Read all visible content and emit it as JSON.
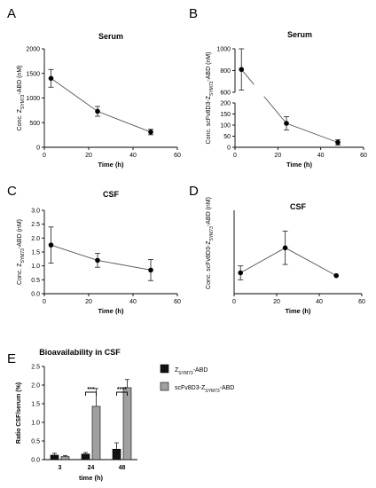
{
  "colors": {
    "black_bar": "#111111",
    "grey_bar": "#a0a0a0",
    "line": "#555555"
  },
  "chart_data": [
    {
      "id": "A",
      "type": "line",
      "panel_label": "A",
      "title": "Serum",
      "ylabel": "Conc. Zₛᵧₘ₇₃-ABD (nM)",
      "ylabel_parts": {
        "pre": "Conc. Z",
        "sub": "SYM73",
        "post": "-ABD (nM)"
      },
      "xlabel": "Time (h)",
      "xlim": [
        0,
        60
      ],
      "ylim": [
        0,
        2000
      ],
      "xticks": [
        0,
        20,
        40,
        60
      ],
      "yticks": [
        0,
        500,
        1000,
        1500,
        2000
      ],
      "series": [
        {
          "x": [
            3,
            24,
            48
          ],
          "y": [
            1400,
            730,
            310
          ],
          "err": [
            180,
            100,
            55
          ]
        }
      ]
    },
    {
      "id": "B",
      "type": "line",
      "panel_label": "B",
      "title": "Serum",
      "ylabel": "Conc. scFv8D3-Z SYM73-ABD (nM)",
      "ylabel_parts": {
        "pre": "Conc. scFv8D3-Z",
        "sub": "SYM73",
        "post": "-ABD (nM)"
      },
      "xlabel": "Time (h)",
      "xlim": [
        0,
        60
      ],
      "axis_break": true,
      "ylim_lower": [
        0,
        200
      ],
      "ylim_upper": [
        600,
        1000
      ],
      "xticks": [
        0,
        20,
        40,
        60
      ],
      "yticks_lower": [
        0,
        50,
        100,
        150,
        200
      ],
      "yticks_upper": [
        600,
        800,
        1000
      ],
      "series": [
        {
          "x": [
            3,
            24,
            48
          ],
          "y": [
            810,
            108,
            22
          ],
          "err": [
            190,
            30,
            12
          ]
        }
      ]
    },
    {
      "id": "C",
      "type": "line",
      "panel_label": "C",
      "title": "CSF",
      "ylabel_parts": {
        "pre": "Conc. Z",
        "sub": "SYM73",
        "post": "-ABD (nM)"
      },
      "xlabel": "Time (h)",
      "xlim": [
        0,
        60
      ],
      "ylim": [
        0,
        3.0
      ],
      "xticks": [
        0,
        20,
        40,
        60
      ],
      "yticks": [
        0.0,
        0.5,
        1.0,
        1.5,
        2.0,
        2.5,
        3.0
      ],
      "ytick_labels": [
        "0.0",
        "0.5",
        "1.0",
        "1.5",
        "2.0",
        "2.5",
        "3.0"
      ],
      "series": [
        {
          "x": [
            3,
            24,
            48
          ],
          "y": [
            1.75,
            1.2,
            0.85
          ],
          "err": [
            0.65,
            0.25,
            0.38
          ]
        }
      ]
    },
    {
      "id": "D",
      "type": "line",
      "panel_label": "D",
      "title": "CSF",
      "ylabel_parts": {
        "pre": "Conc. scFv8D3-Z",
        "sub": "SYM73",
        "post": "-ABD (nM)"
      },
      "xlabel": "Time (h)",
      "xlim": [
        0,
        60
      ],
      "ylim": [
        0,
        3.0
      ],
      "xticks": [
        0,
        20,
        40,
        60
      ],
      "yticks": [],
      "series": [
        {
          "x": [
            3,
            24,
            48
          ],
          "y": [
            0.75,
            1.65,
            0.65
          ],
          "err": [
            0.25,
            0.6,
            0.0
          ]
        }
      ]
    },
    {
      "id": "E",
      "type": "bar",
      "panel_label": "E",
      "title": "Bioavailability in CSF",
      "ylabel": "Ratio CSF/serum (%)",
      "xlabel": "time (h)",
      "categories": [
        "3",
        "24",
        "48"
      ],
      "ylim": [
        0,
        2.5
      ],
      "yticks": [
        0.0,
        0.5,
        1.0,
        1.5,
        2.0,
        2.5
      ],
      "ytick_labels": [
        "0.0",
        "0.5",
        "1.0",
        "1.5",
        "2.0",
        "2.5"
      ],
      "legend_position": "right",
      "series": [
        {
          "name_parts": {
            "pre": "Z",
            "sub": "SYM73",
            "post": "-ABD"
          },
          "color": "#111111",
          "values": [
            0.12,
            0.15,
            0.28
          ],
          "err": [
            0.05,
            0.04,
            0.17
          ]
        },
        {
          "name_parts": {
            "pre": "scFv8D3-Z",
            "sub": "SYM73",
            "post": "-ABD"
          },
          "color": "#a0a0a0",
          "values": [
            0.08,
            1.43,
            1.93
          ],
          "err": [
            0.03,
            0.48,
            0.22
          ]
        }
      ],
      "significance": [
        {
          "category": "24",
          "label": "***"
        },
        {
          "category": "48",
          "label": "****"
        }
      ]
    }
  ]
}
